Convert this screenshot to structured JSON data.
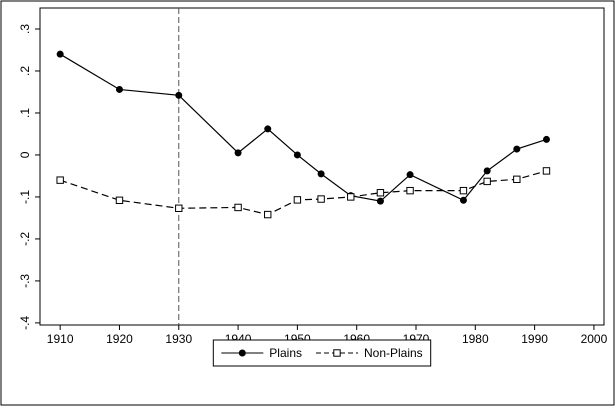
{
  "chart_data": {
    "type": "line",
    "x": [
      1910,
      1920,
      1930,
      1940,
      1945,
      1950,
      1954,
      1959,
      1964,
      1969,
      1978,
      1982,
      1987,
      1992
    ],
    "series": [
      {
        "name": "Plains",
        "color": "#000000",
        "dash": "solid",
        "marker": "filled-circle",
        "values": [
          0.24,
          0.156,
          0.142,
          0.005,
          0.062,
          0,
          -0.045,
          -0.097,
          -0.11,
          -0.047,
          -0.108,
          -0.038,
          0.014,
          0.037
        ]
      },
      {
        "name": "Non-Plains",
        "color": "#000000",
        "dash": "dashed",
        "marker": "hollow-square",
        "values": [
          -0.06,
          -0.108,
          -0.127,
          -0.125,
          -0.142,
          -0.107,
          -0.105,
          -0.1,
          -0.09,
          -0.085,
          -0.085,
          -0.063,
          -0.058,
          -0.038
        ]
      }
    ],
    "xlim": [
      1906.6,
      2001.7
    ],
    "xticks": [
      1910,
      1920,
      1930,
      1940,
      1950,
      1960,
      1970,
      1980,
      1990,
      2000
    ],
    "ylim": [
      -0.405,
      0.35
    ],
    "yticks": [
      {
        "value": -0.4,
        "label": "-.4"
      },
      {
        "value": -0.3,
        "label": "-.3"
      },
      {
        "value": -0.2,
        "label": "-.2"
      },
      {
        "value": -0.1,
        "label": "-.1"
      },
      0,
      {
        "value": 0.1,
        "label": ".1"
      },
      {
        "value": 0.2,
        "label": ".2"
      },
      {
        "value": 0.3,
        "label": ".3"
      }
    ],
    "vline": 1930,
    "grid": false,
    "legend": "bottom"
  }
}
